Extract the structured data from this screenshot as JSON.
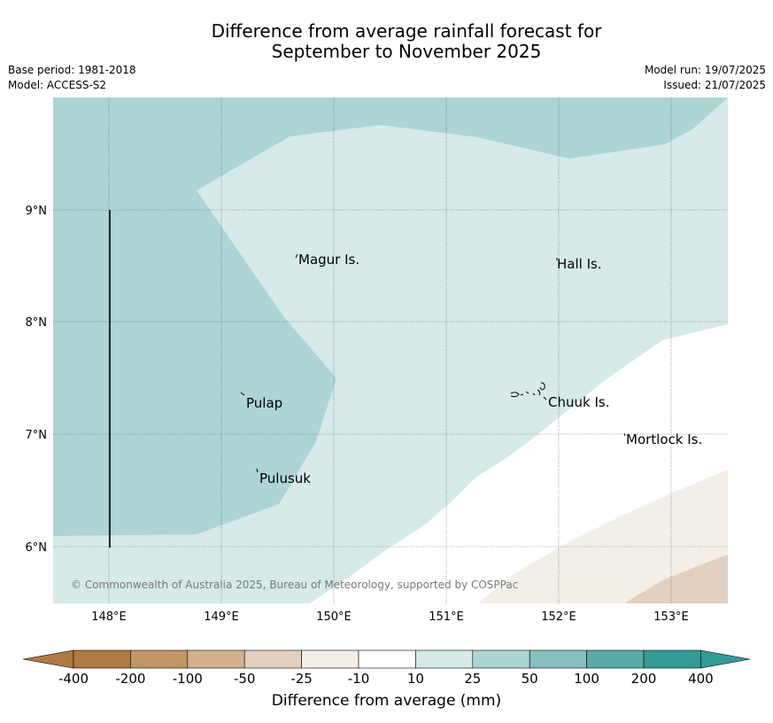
{
  "title_line1": "Difference from average rainfall forecast for",
  "title_line2": "September to November 2025",
  "meta": {
    "base_period": "Base period: 1981-2018",
    "model": "Model: ACCESS-S2",
    "model_run": "Model run: 19/07/2025",
    "issued": "Issued: 21/07/2025"
  },
  "map": {
    "lon_range": [
      147.5,
      153.5
    ],
    "lat_range": [
      5.5,
      10.0
    ],
    "lon_ticks": [
      "148°E",
      "149°E",
      "150°E",
      "151°E",
      "152°E",
      "153°E"
    ],
    "lat_ticks": [
      "9°N",
      "8°N",
      "7°N",
      "6°N"
    ],
    "grid": true,
    "places": [
      {
        "name": "Magur Is."
      },
      {
        "name": "Hall Is."
      },
      {
        "name": "Pulap"
      },
      {
        "name": "Chuuk Is."
      },
      {
        "name": "Mortlock Is."
      },
      {
        "name": "Pulusuk"
      }
    ],
    "copyright": "© Commonwealth of Australia 2025, Bureau of Meteorology, supported by COSPPac"
  },
  "colors": {
    "c_400_200n": "#b07a43",
    "c_200_100n": "#c29566",
    "c_100_50n": "#d3b08f",
    "c_50_25n": "#e3d0c0",
    "c_25_10n": "#f3eee8",
    "c_10": "#ffffff",
    "c_10_25": "#d5eae9",
    "c_25_50": "#acd5d4",
    "c_50_100": "#86c0be",
    "c_100_200": "#5aaba8",
    "c_200_400": "#339a96"
  },
  "colorbar": {
    "labels": [
      "-400",
      "-200",
      "-100",
      "-50",
      "-25",
      "-10",
      "10",
      "25",
      "50",
      "100",
      "200",
      "400"
    ],
    "title": "Difference from average (mm)"
  }
}
